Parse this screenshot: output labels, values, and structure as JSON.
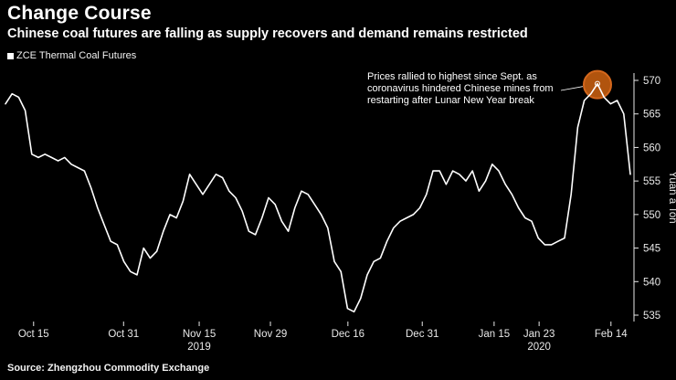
{
  "header": {
    "title": "Change Course",
    "subtitle": "Chinese coal futures are falling as supply recovers and demand remains restricted"
  },
  "legend": {
    "label": "ZCE Thermal Coal Futures"
  },
  "annotation": {
    "text": "Prices rallied to highest since Sept. as\ncoronavirus hindered Chinese mines from\nrestarting after Lunar New Year break"
  },
  "source": "Source: Zhengzhou Commodity Exchange",
  "colors": {
    "background": "#000000",
    "line": "#ffffff",
    "axis": "#e8e8e8",
    "highlight_fill": "#b1540e",
    "highlight_stroke": "#d4671c"
  },
  "chart_data": {
    "type": "line",
    "title": "Change Course",
    "subtitle": "Chinese coal futures are falling as supply recovers and demand remains restricted",
    "xlabel": "",
    "ylabel": "Yuan a Ton",
    "ylim": [
      534,
      571.5
    ],
    "yticks": [
      535,
      540,
      545,
      550,
      555,
      560,
      565,
      570
    ],
    "grid": false,
    "legend_position": "top-left",
    "xticks": [
      {
        "label": "Oct 15",
        "pos": 0.045,
        "sub": ""
      },
      {
        "label": "Oct 31",
        "pos": 0.189,
        "sub": ""
      },
      {
        "label": "Nov 15",
        "pos": 0.31,
        "sub": "2019"
      },
      {
        "label": "Nov 29",
        "pos": 0.424,
        "sub": ""
      },
      {
        "label": "Dec 16",
        "pos": 0.548,
        "sub": ""
      },
      {
        "label": "Dec 31",
        "pos": 0.667,
        "sub": ""
      },
      {
        "label": "Jan 15",
        "pos": 0.782,
        "sub": ""
      },
      {
        "label": "Jan 23",
        "pos": 0.854,
        "sub": "2020"
      },
      {
        "label": "Feb 14",
        "pos": 0.969,
        "sub": ""
      }
    ],
    "series": [
      {
        "name": "ZCE Thermal Coal Futures",
        "color": "#ffffff",
        "values": [
          566.5,
          568,
          567.5,
          565.5,
          559,
          558.5,
          559,
          558.5,
          558,
          558.5,
          557.5,
          557,
          556.5,
          554,
          551,
          548.5,
          546,
          545.5,
          543,
          541.5,
          541,
          545,
          543.5,
          544.5,
          547.5,
          550,
          549.5,
          552,
          556,
          554.5,
          553,
          554.5,
          556,
          555.5,
          553.5,
          552.5,
          550.5,
          547.5,
          547,
          549.5,
          552.5,
          551.5,
          549,
          547.5,
          551,
          553.5,
          553,
          551.5,
          550,
          548,
          543,
          541.5,
          536,
          535.5,
          537.5,
          541,
          543,
          543.5,
          546,
          548,
          549,
          549.5,
          550,
          551,
          553,
          556.5,
          556.5,
          554.5,
          556.5,
          556,
          555,
          556.5,
          553.5,
          555,
          557.5,
          556.5,
          554.5,
          553,
          551,
          549.5,
          549,
          546.5,
          545.5,
          545.5,
          546,
          546.5,
          553,
          563,
          567,
          568,
          569.5,
          567.5,
          566.5,
          567,
          565,
          556
        ]
      }
    ],
    "highlight": {
      "index": 90,
      "note_value": 569.5
    }
  }
}
